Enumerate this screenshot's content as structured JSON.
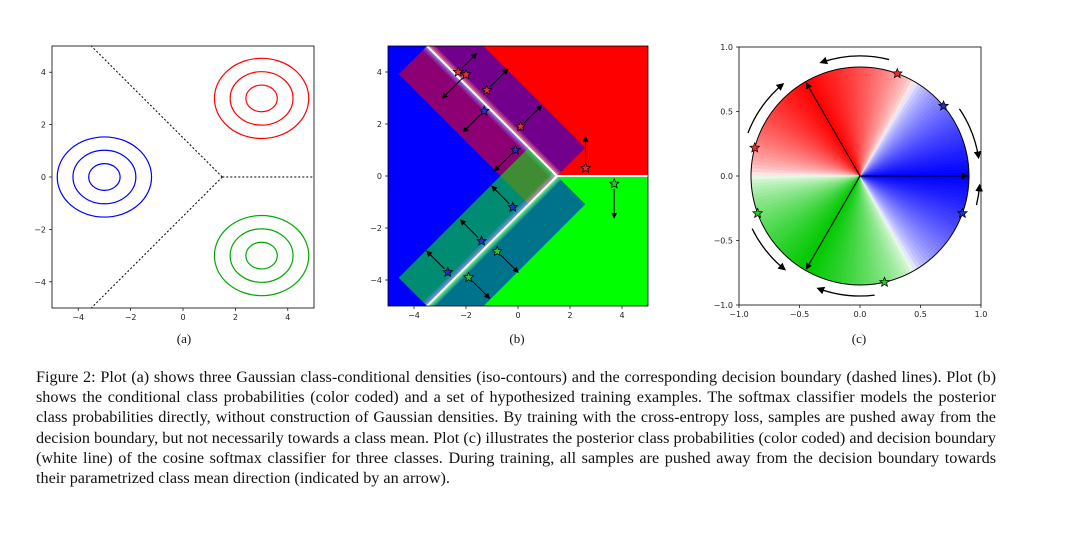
{
  "panels": {
    "a": {
      "label": "(a)"
    },
    "b": {
      "label": "(b)"
    },
    "c": {
      "label": "(c)"
    }
  },
  "colors": {
    "class1": "#ff0000",
    "class2": "#0000ff",
    "class3": "#00cc00",
    "boundary_dashed": "#000000",
    "boundary_white": "#ffffff"
  },
  "chart_data": [
    {
      "panel": "a",
      "type": "scatter",
      "title": "",
      "xlabel": "",
      "ylabel": "",
      "xlim": [
        -5,
        5
      ],
      "ylim": [
        -5,
        5
      ],
      "xticks": [
        "−4",
        "−2",
        "0",
        "2",
        "4"
      ],
      "yticks": [
        "4",
        "2",
        "0",
        "−2",
        "−4"
      ],
      "series": [
        {
          "color": "#ff0000",
          "center": [
            3,
            3
          ],
          "contour_radii": [
            0.6,
            1.2,
            1.8
          ]
        },
        {
          "color": "#0000ff",
          "center": [
            -3,
            0
          ],
          "contour_radii": [
            0.6,
            1.2,
            1.8
          ]
        },
        {
          "color": "#00aa00",
          "center": [
            3,
            -3
          ],
          "contour_radii": [
            0.6,
            1.2,
            1.8
          ]
        }
      ],
      "boundary": {
        "junction": [
          1.5,
          0
        ],
        "ends": [
          [
            -3.5,
            5
          ],
          [
            -3.5,
            -5
          ],
          [
            5,
            0
          ]
        ],
        "style": "dashed"
      }
    },
    {
      "panel": "b",
      "type": "scatter",
      "title": "",
      "xlabel": "",
      "ylabel": "",
      "xlim": [
        -5,
        5
      ],
      "ylim": [
        -5,
        5
      ],
      "xticks": [
        "−4",
        "−2",
        "0",
        "2",
        "4"
      ],
      "yticks": [
        "4",
        "2",
        "0",
        "−2",
        "−4"
      ],
      "regions": [
        {
          "class": "red",
          "color": "#ff0000"
        },
        {
          "class": "blue",
          "color": "#0000ff"
        },
        {
          "class": "green",
          "color": "#00ff00"
        }
      ],
      "samples": [
        {
          "class": "red",
          "x": -2.0,
          "y": 3.9,
          "arrow": [
            -0.9,
            -0.9
          ]
        },
        {
          "class": "red",
          "x": -2.3,
          "y": 4.0,
          "arrow": [
            0.7,
            0.7
          ]
        },
        {
          "class": "red",
          "x": -1.2,
          "y": 3.3,
          "arrow": [
            0.8,
            0.8
          ]
        },
        {
          "class": "red",
          "x": 0.1,
          "y": 1.9,
          "arrow": [
            0.8,
            0.8
          ]
        },
        {
          "class": "red",
          "x": 2.6,
          "y": 0.3,
          "arrow": [
            0.0,
            1.2
          ]
        },
        {
          "class": "blue",
          "x": -1.3,
          "y": 2.5,
          "arrow": [
            -0.8,
            -0.8
          ]
        },
        {
          "class": "blue",
          "x": -0.1,
          "y": 1.0,
          "arrow": [
            -0.8,
            -0.8
          ]
        },
        {
          "class": "blue",
          "x": -0.2,
          "y": -1.2,
          "arrow": [
            -0.8,
            0.8
          ]
        },
        {
          "class": "blue",
          "x": -1.4,
          "y": -2.5,
          "arrow": [
            -0.8,
            0.8
          ]
        },
        {
          "class": "blue",
          "x": -2.7,
          "y": -3.7,
          "arrow": [
            -0.8,
            0.8
          ]
        },
        {
          "class": "green",
          "x": 3.7,
          "y": -0.3,
          "arrow": [
            0.0,
            -1.3
          ]
        },
        {
          "class": "green",
          "x": -0.8,
          "y": -2.9,
          "arrow": [
            0.8,
            -0.8
          ]
        },
        {
          "class": "green",
          "x": -1.9,
          "y": -3.9,
          "arrow": [
            0.8,
            -0.8
          ]
        }
      ]
    },
    {
      "panel": "c",
      "type": "scatter",
      "title": "",
      "xlabel": "",
      "ylabel": "",
      "xlim": [
        -1.0,
        1.0
      ],
      "ylim": [
        -1.0,
        1.0
      ],
      "xticks": [
        "−1.0",
        "−0.5",
        "0.0",
        "0.5",
        "1.0"
      ],
      "yticks": [
        "1.0",
        "0.5",
        "0.0",
        "−0.5",
        "−1.0"
      ],
      "class_means_deg": [
        {
          "class": "red",
          "angle": 120
        },
        {
          "class": "blue",
          "angle": 0
        },
        {
          "class": "green",
          "angle": 240
        }
      ],
      "boundaries_deg": [
        60,
        180,
        300
      ],
      "samples": [
        {
          "class": "red",
          "angle": 70
        },
        {
          "class": "red",
          "angle": 165
        },
        {
          "class": "blue",
          "angle": 40
        },
        {
          "class": "blue",
          "angle": -20
        },
        {
          "class": "green",
          "angle": 200
        },
        {
          "class": "green",
          "angle": 283
        }
      ]
    }
  ],
  "caption": "Figure 2: Plot (a) shows three Gaussian class-conditional densities (iso-contours) and the corresponding decision boundary (dashed lines). Plot (b) shows the conditional class probabilities (color coded) and a set of hypothesized training examples. The softmax classifier models the posterior class probabilities directly, without construction of Gaussian densities. By training with the cross-entropy loss, samples are pushed away from the decision boundary, but not necessarily towards a class mean. Plot (c) illustrates the posterior class probabilities (color coded) and decision boundary (white line) of the cosine softmax classifier for three classes. During training, all samples are pushed away from the decision boundary towards their parametrized class mean direction (indicated by an arrow)."
}
